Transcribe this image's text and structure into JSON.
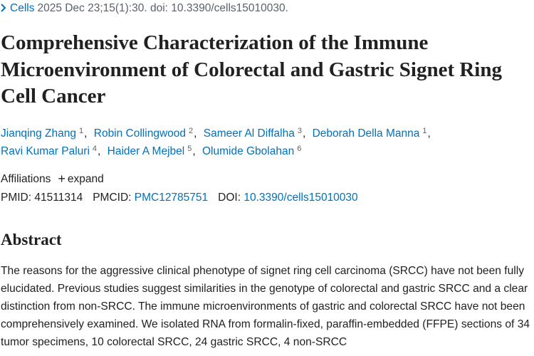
{
  "citation": {
    "journal": "Cells",
    "details": "2025 Dec 23;15(1):30. doi: 10.3390/cells15010030."
  },
  "title": "Comprehensive Characterization of the Immune Microenvironment of Colorectal and Gastric Signet Ring Cell Cancer",
  "authors": [
    {
      "name": "Jianqing Zhang",
      "affiliation": "1"
    },
    {
      "name": "Robin Collingwood",
      "affiliation": "2"
    },
    {
      "name": "Sameer Al Diffalha",
      "affiliation": "3"
    },
    {
      "name": "Deborah Della Manna",
      "affiliation": "1"
    },
    {
      "name": "Ravi Kumar Paluri",
      "affiliation": "4"
    },
    {
      "name": "Haider A Mejbel",
      "affiliation": "5"
    },
    {
      "name": "Olumide Gbolahan",
      "affiliation": "6"
    }
  ],
  "affiliations": {
    "label": "Affiliations",
    "toggle": "expand"
  },
  "identifiers": {
    "pmid_label": "PMID:",
    "pmid": "41511314",
    "pmcid_label": "PMCID:",
    "pmcid": "PMC12785751",
    "doi_label": "DOI:",
    "doi": "10.3390/cells15010030"
  },
  "abstract": {
    "heading": "Abstract",
    "text": "The reasons for the aggressive clinical phenotype of signet ring cell carcinoma (SRCC) have not been fully elucidated. Previous studies suggest similarities in the genotype of colorectal and gastric SRCC and a clear distinction from non-SRCC. The immune microenvironments of gastric and colorectal SRCC have not been comprehensively examined. We isolated RNA from formalin-fixed, paraffin-embedded (FFPE) sections of 34 tumor specimens, 10 colorectal SRCC, 24 gastric SRCC, 4 non-SRCC"
  }
}
